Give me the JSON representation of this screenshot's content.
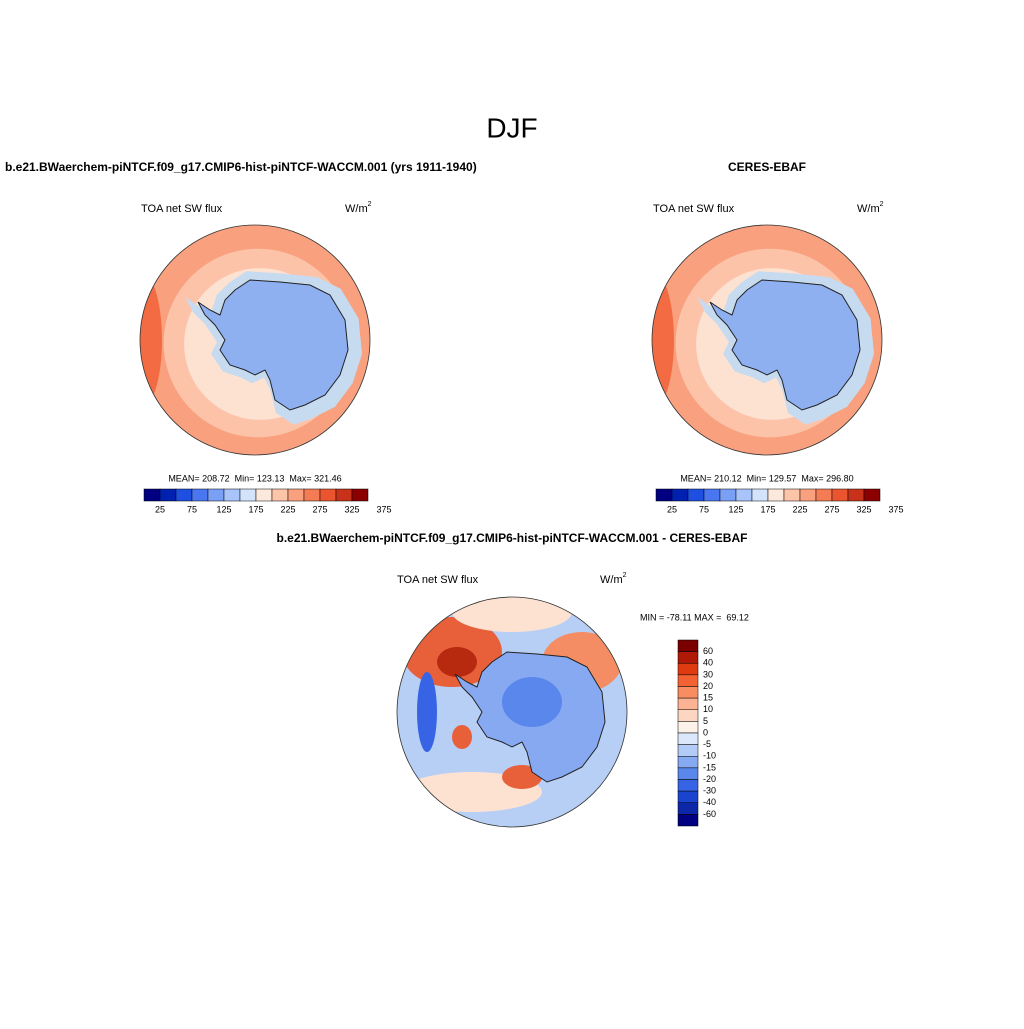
{
  "title": "DJF",
  "panels": [
    {
      "title": "b.e21.BWaerchem-piNTCF.f09_g17.CMIP6-hist-piNTCF-WACCM.001 (yrs 1911-1940)",
      "left_label": "TOA net SW flux",
      "units": "W/m",
      "units_exponent": "2",
      "stats": "MEAN= 208.72  Min= 123.13  Max= 321.46",
      "colorbar_labels": [
        25,
        75,
        125,
        175,
        225,
        275,
        325,
        375
      ]
    },
    {
      "title": "CERES-EBAF",
      "left_label": "TOA net SW flux",
      "units": "W/m",
      "units_exponent": "2",
      "stats": "MEAN= 210.12  Min= 129.57  Max= 296.80",
      "colorbar_labels": [
        25,
        75,
        125,
        175,
        225,
        275,
        325,
        375
      ]
    }
  ],
  "difference": {
    "title": "b.e21.BWaerchem-piNTCF.f09_g17.CMIP6-hist-piNTCF-WACCM.001 - CERES-EBAF",
    "left_label": "TOA net SW flux",
    "units": "W/m",
    "units_exponent": "2",
    "stats": "MIN = -78.11 MAX =  69.12",
    "colorbar_labels": [
      60,
      40,
      30,
      20,
      15,
      10,
      5,
      0,
      -5,
      -10,
      -15,
      -20,
      -30,
      -40,
      -60
    ]
  }
}
